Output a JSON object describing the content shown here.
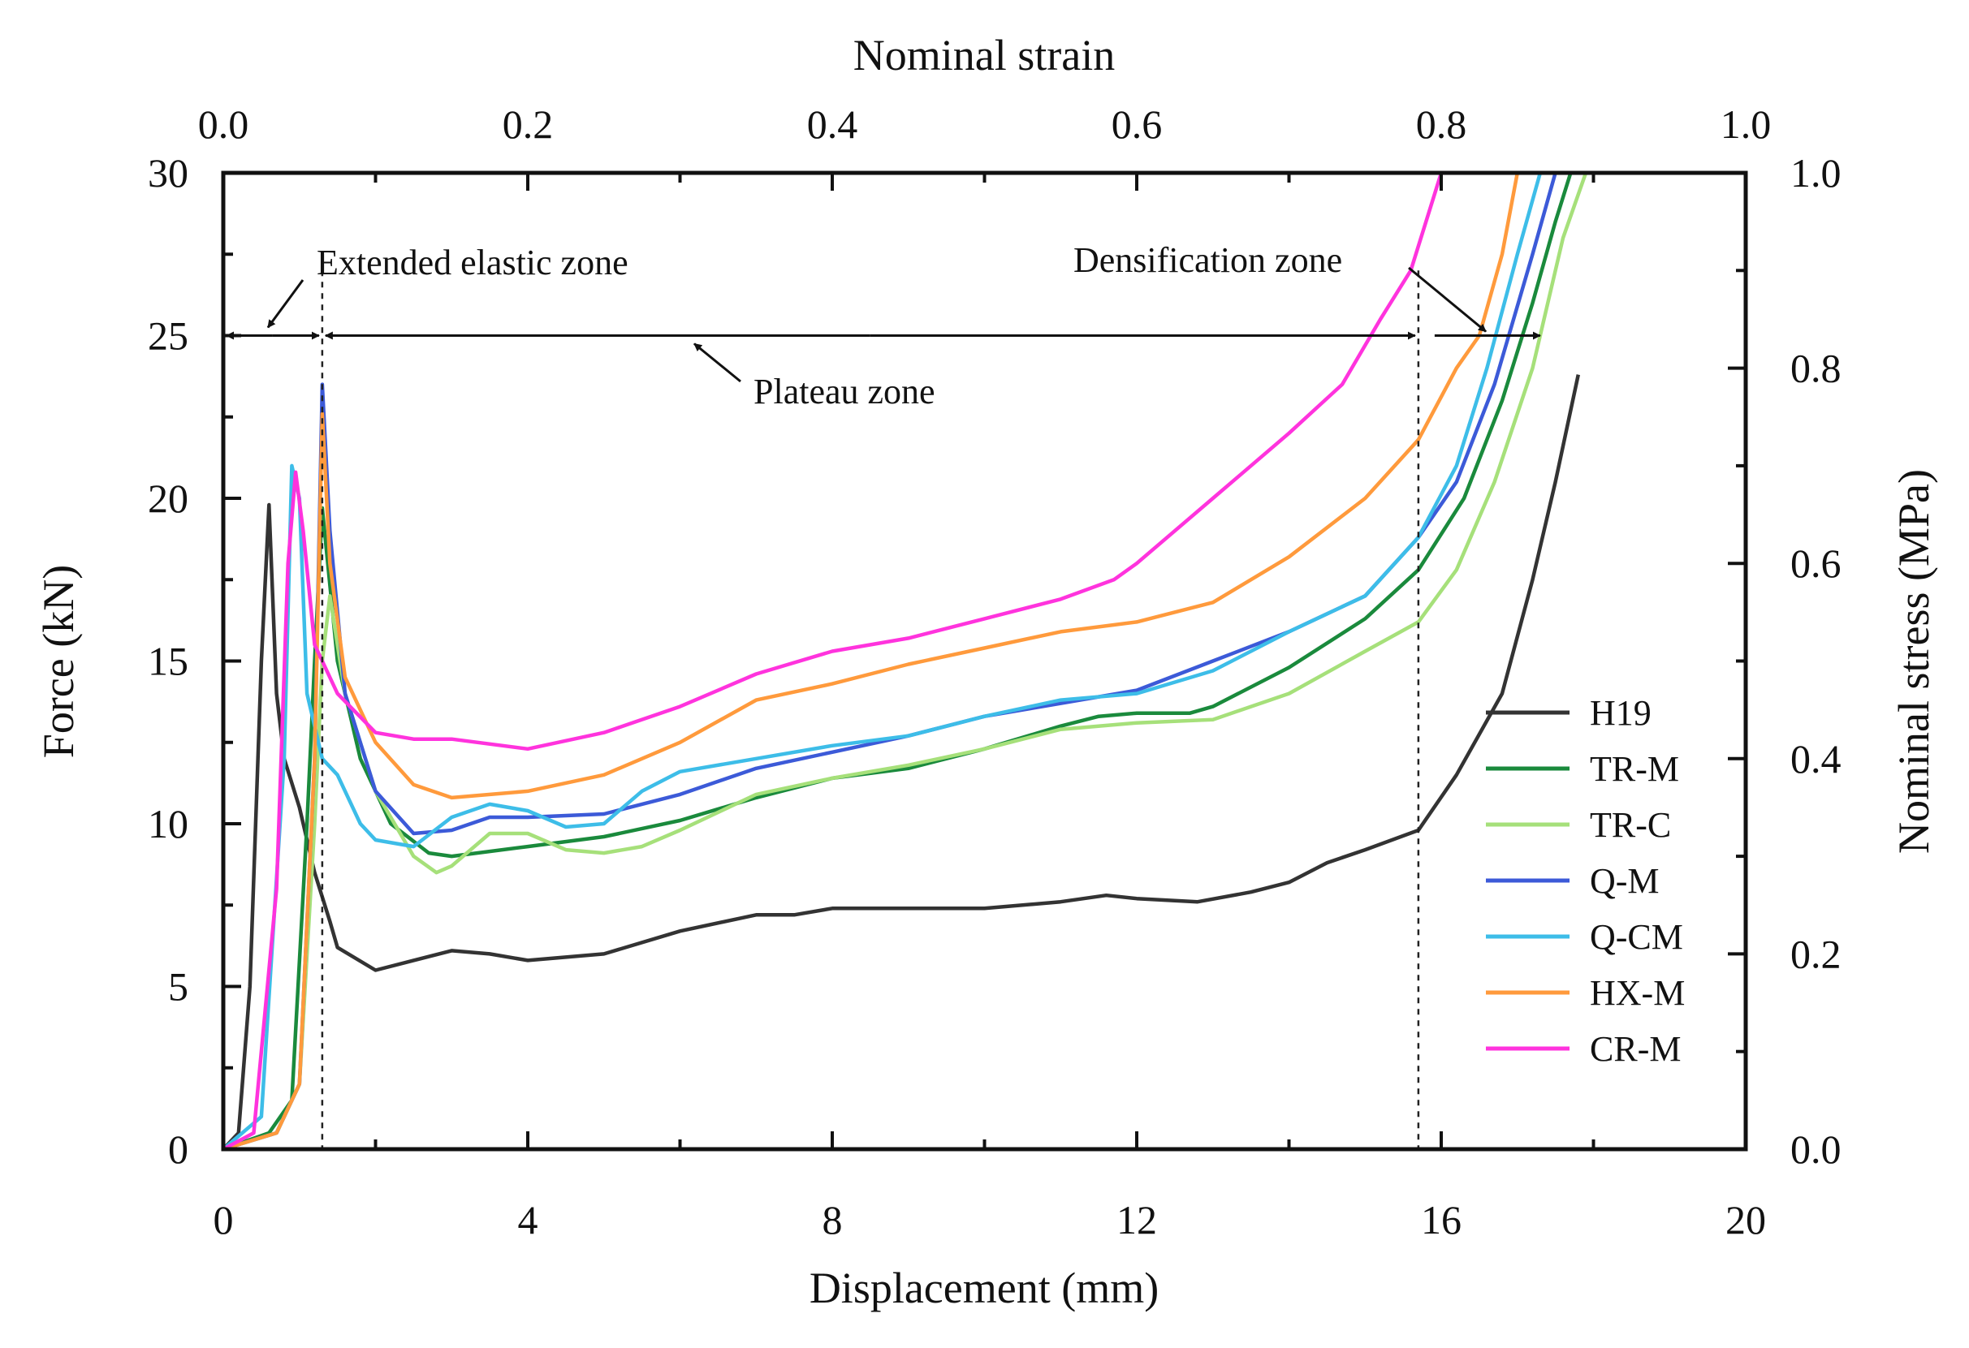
{
  "chart_data": {
    "type": "line",
    "title": "",
    "xlabel": "Displacement (mm)",
    "ylabel": "Force (kN)",
    "x2label": "Nominal strain",
    "y2label": "Nominal stress (MPa)",
    "xlim": [
      0,
      20
    ],
    "ylim": [
      0,
      30
    ],
    "x2lim": [
      0,
      1.0
    ],
    "y2lim": [
      0,
      1.0
    ],
    "xticks": [
      "0",
      "4",
      "8",
      "12",
      "16",
      "20"
    ],
    "yticks": [
      "0",
      "5",
      "10",
      "15",
      "20",
      "25",
      "30"
    ],
    "x2ticks": [
      "0.0",
      "0.2",
      "0.4",
      "0.6",
      "0.8",
      "1.0"
    ],
    "y2ticks": [
      "0.0",
      "0.2",
      "0.4",
      "0.6",
      "0.8",
      "1.0"
    ],
    "grid": false,
    "legend_position": "right-center",
    "annotations": {
      "elastic": "Extended elastic zone",
      "plateau": "Plateau zone",
      "densification": "Densification zone"
    },
    "zone_boundaries_mm": [
      1.3,
      15.7
    ],
    "arrow_level_kN": 25,
    "series": [
      {
        "name": "H19",
        "color": "#333333",
        "points": [
          [
            0,
            0
          ],
          [
            0.2,
            0.5
          ],
          [
            0.35,
            5
          ],
          [
            0.5,
            15
          ],
          [
            0.6,
            19.8
          ],
          [
            0.7,
            14
          ],
          [
            0.8,
            12
          ],
          [
            1.0,
            10.5
          ],
          [
            1.2,
            8.5
          ],
          [
            1.4,
            7
          ],
          [
            1.5,
            6.2
          ],
          [
            2,
            5.5
          ],
          [
            2.5,
            5.8
          ],
          [
            3,
            6.1
          ],
          [
            3.5,
            6
          ],
          [
            4,
            5.8
          ],
          [
            5,
            6
          ],
          [
            6,
            6.7
          ],
          [
            7,
            7.2
          ],
          [
            7.5,
            7.2
          ],
          [
            8,
            7.4
          ],
          [
            9,
            7.4
          ],
          [
            10,
            7.4
          ],
          [
            11,
            7.6
          ],
          [
            11.6,
            7.8
          ],
          [
            12,
            7.7
          ],
          [
            12.8,
            7.6
          ],
          [
            13.5,
            7.9
          ],
          [
            14,
            8.2
          ],
          [
            14.5,
            8.8
          ],
          [
            15,
            9.2
          ],
          [
            15.7,
            9.8
          ],
          [
            16.2,
            11.5
          ],
          [
            16.8,
            14
          ],
          [
            17.2,
            17.5
          ],
          [
            17.5,
            20.5
          ],
          [
            17.8,
            23.8
          ]
        ]
      },
      {
        "name": "TR-M",
        "color": "#1a8a3c",
        "points": [
          [
            0,
            0
          ],
          [
            0.6,
            0.5
          ],
          [
            0.9,
            1.5
          ],
          [
            1.1,
            10
          ],
          [
            1.2,
            15
          ],
          [
            1.3,
            19.7
          ],
          [
            1.5,
            15
          ],
          [
            1.8,
            12
          ],
          [
            2.2,
            10
          ],
          [
            2.7,
            9.1
          ],
          [
            3,
            9
          ],
          [
            4,
            9.3
          ],
          [
            5,
            9.6
          ],
          [
            6,
            10.1
          ],
          [
            7,
            10.8
          ],
          [
            8,
            11.4
          ],
          [
            9,
            11.7
          ],
          [
            10,
            12.3
          ],
          [
            11,
            13
          ],
          [
            11.5,
            13.3
          ],
          [
            12,
            13.4
          ],
          [
            12.7,
            13.4
          ],
          [
            13,
            13.6
          ],
          [
            14,
            14.8
          ],
          [
            15,
            16.3
          ],
          [
            15.7,
            17.8
          ],
          [
            16.3,
            20
          ],
          [
            16.8,
            23
          ],
          [
            17.2,
            26
          ],
          [
            17.5,
            28.5
          ],
          [
            17.7,
            30
          ]
        ]
      },
      {
        "name": "TR-C",
        "color": "#a6e07a",
        "points": [
          [
            0,
            0
          ],
          [
            0.7,
            0.5
          ],
          [
            1.0,
            2
          ],
          [
            1.2,
            10
          ],
          [
            1.3,
            15
          ],
          [
            1.4,
            17
          ],
          [
            1.6,
            14
          ],
          [
            2,
            11
          ],
          [
            2.5,
            9
          ],
          [
            2.8,
            8.5
          ],
          [
            3,
            8.7
          ],
          [
            3.5,
            9.7
          ],
          [
            4,
            9.7
          ],
          [
            4.5,
            9.2
          ],
          [
            5,
            9.1
          ],
          [
            5.5,
            9.3
          ],
          [
            6,
            9.8
          ],
          [
            7,
            10.9
          ],
          [
            8,
            11.4
          ],
          [
            9,
            11.8
          ],
          [
            10,
            12.3
          ],
          [
            11,
            12.9
          ],
          [
            12,
            13.1
          ],
          [
            13,
            13.2
          ],
          [
            14,
            14
          ],
          [
            15,
            15.3
          ],
          [
            15.7,
            16.2
          ],
          [
            16.2,
            17.8
          ],
          [
            16.7,
            20.5
          ],
          [
            17.2,
            24
          ],
          [
            17.6,
            28
          ],
          [
            17.9,
            30
          ]
        ]
      },
      {
        "name": "Q-M",
        "color": "#3c5ad8",
        "points": [
          [
            0,
            0
          ],
          [
            0.7,
            0.5
          ],
          [
            1.0,
            2
          ],
          [
            1.2,
            12
          ],
          [
            1.3,
            23.5
          ],
          [
            1.4,
            19
          ],
          [
            1.6,
            14
          ],
          [
            2,
            11
          ],
          [
            2.5,
            9.7
          ],
          [
            3,
            9.8
          ],
          [
            3.5,
            10.2
          ],
          [
            4,
            10.2
          ],
          [
            5,
            10.3
          ],
          [
            6,
            10.9
          ],
          [
            7,
            11.7
          ],
          [
            8,
            12.2
          ],
          [
            9,
            12.7
          ],
          [
            10,
            13.3
          ],
          [
            11,
            13.7
          ],
          [
            12,
            14.1
          ],
          [
            13,
            15
          ],
          [
            14,
            15.9
          ],
          [
            15,
            17
          ],
          [
            15.7,
            18.8
          ],
          [
            16.2,
            20.5
          ],
          [
            16.7,
            23.5
          ],
          [
            17.2,
            27.5
          ],
          [
            17.5,
            30
          ]
        ]
      },
      {
        "name": "Q-CM",
        "color": "#3dbde8",
        "points": [
          [
            0,
            0
          ],
          [
            0.5,
            1
          ],
          [
            0.8,
            12
          ],
          [
            0.9,
            21
          ],
          [
            1.0,
            20
          ],
          [
            1.1,
            14
          ],
          [
            1.3,
            12
          ],
          [
            1.5,
            11.5
          ],
          [
            1.8,
            10
          ],
          [
            2,
            9.5
          ],
          [
            2.5,
            9.3
          ],
          [
            3,
            10.2
          ],
          [
            3.5,
            10.6
          ],
          [
            4,
            10.4
          ],
          [
            4.5,
            9.9
          ],
          [
            5,
            10
          ],
          [
            5.5,
            11
          ],
          [
            6,
            11.6
          ],
          [
            7,
            12
          ],
          [
            8,
            12.4
          ],
          [
            9,
            12.7
          ],
          [
            10,
            13.3
          ],
          [
            11,
            13.8
          ],
          [
            12,
            14
          ],
          [
            13,
            14.7
          ],
          [
            14,
            15.9
          ],
          [
            15,
            17
          ],
          [
            15.7,
            18.8
          ],
          [
            16.2,
            21
          ],
          [
            16.6,
            24
          ],
          [
            17,
            27.5
          ],
          [
            17.3,
            30
          ]
        ]
      },
      {
        "name": "HX-M",
        "color": "#ff9a3c",
        "points": [
          [
            0,
            0
          ],
          [
            0.7,
            0.5
          ],
          [
            1.0,
            2
          ],
          [
            1.2,
            12
          ],
          [
            1.3,
            22.6
          ],
          [
            1.4,
            18
          ],
          [
            1.6,
            14.5
          ],
          [
            2,
            12.5
          ],
          [
            2.5,
            11.2
          ],
          [
            3,
            10.8
          ],
          [
            4,
            11
          ],
          [
            5,
            11.5
          ],
          [
            6,
            12.5
          ],
          [
            7,
            13.8
          ],
          [
            8,
            14.3
          ],
          [
            9,
            14.9
          ],
          [
            10,
            15.4
          ],
          [
            11,
            15.9
          ],
          [
            12,
            16.2
          ],
          [
            13,
            16.8
          ],
          [
            14,
            18.2
          ],
          [
            15,
            20
          ],
          [
            15.7,
            21.8
          ],
          [
            16.2,
            24
          ],
          [
            16.5,
            25
          ],
          [
            16.8,
            27.5
          ],
          [
            17,
            30
          ]
        ]
      },
      {
        "name": "CR-M",
        "color": "#ff33dd",
        "points": [
          [
            0,
            0
          ],
          [
            0.4,
            0.5
          ],
          [
            0.7,
            8
          ],
          [
            0.85,
            18
          ],
          [
            0.95,
            20.8
          ],
          [
            1.05,
            19
          ],
          [
            1.2,
            15.5
          ],
          [
            1.5,
            14
          ],
          [
            2,
            12.8
          ],
          [
            2.5,
            12.6
          ],
          [
            3,
            12.6
          ],
          [
            4,
            12.3
          ],
          [
            5,
            12.8
          ],
          [
            6,
            13.6
          ],
          [
            7,
            14.6
          ],
          [
            8,
            15.3
          ],
          [
            9,
            15.7
          ],
          [
            10,
            16.3
          ],
          [
            11,
            16.9
          ],
          [
            11.7,
            17.5
          ],
          [
            12,
            18
          ],
          [
            13,
            20
          ],
          [
            14,
            22
          ],
          [
            14.7,
            23.5
          ],
          [
            15.2,
            25.5
          ],
          [
            15.6,
            27
          ],
          [
            16,
            30
          ]
        ]
      }
    ]
  }
}
